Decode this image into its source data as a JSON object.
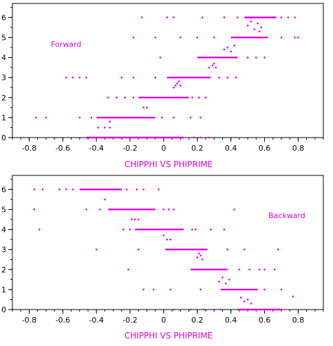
{
  "chart_data": [
    {
      "type": "scatter",
      "title": "CHIPPHI VS PHIPRIME",
      "annotation": "Forward",
      "xlim": [
        -0.9,
        0.95
      ],
      "ylim": [
        0,
        6.7
      ],
      "xticks": [
        -0.8,
        -0.6,
        -0.4,
        -0.2,
        0,
        0.2,
        0.4,
        0.6,
        0.8
      ],
      "xtick_labels": [
        "-0.8",
        "-0.6",
        "-0.4",
        "-0.2",
        "0",
        "0.2",
        "0.4",
        "0.6",
        "0.8"
      ],
      "yticks": [
        0,
        1,
        2,
        3,
        4,
        5,
        6
      ],
      "ytick_labels": [
        "0",
        "1",
        "2",
        "3",
        "4",
        "5",
        "6"
      ],
      "color": "#e000e0",
      "segments": [
        {
          "y": 0,
          "x0": -0.46,
          "x1": 0.12
        },
        {
          "y": 1,
          "x0": -0.4,
          "x1": -0.05
        },
        {
          "y": 2,
          "x0": -0.15,
          "x1": 0.15
        },
        {
          "y": 3,
          "x0": 0.02,
          "x1": 0.28
        },
        {
          "y": 4,
          "x0": 0.2,
          "x1": 0.44
        },
        {
          "y": 5,
          "x0": 0.4,
          "x1": 0.62
        },
        {
          "y": 6,
          "x0": 0.48,
          "x1": 0.67
        }
      ],
      "points": [
        [
          -0.76,
          1
        ],
        [
          -0.7,
          1
        ],
        [
          -0.5,
          1
        ],
        [
          -0.43,
          1
        ],
        [
          -0.01,
          1
        ],
        [
          0.06,
          1
        ],
        [
          0.16,
          1
        ],
        [
          0.22,
          1
        ],
        [
          -0.39,
          0.5
        ],
        [
          -0.35,
          0.5
        ],
        [
          -0.32,
          0.5
        ],
        [
          -0.32,
          0.8
        ],
        [
          -0.12,
          1.5
        ],
        [
          -0.1,
          1.5
        ],
        [
          -0.45,
          0
        ],
        [
          0.18,
          0
        ],
        [
          0.22,
          0
        ],
        [
          0.27,
          0
        ],
        [
          -0.33,
          2
        ],
        [
          -0.28,
          2
        ],
        [
          -0.23,
          2
        ],
        [
          -0.18,
          2
        ],
        [
          0.17,
          2
        ],
        [
          0.21,
          2
        ],
        [
          0.25,
          2
        ],
        [
          0.06,
          2.5
        ],
        [
          0.07,
          2.6
        ],
        [
          0.08,
          2.7
        ],
        [
          0.09,
          2.8
        ],
        [
          0.1,
          2.6
        ],
        [
          -0.58,
          3
        ],
        [
          -0.54,
          3
        ],
        [
          -0.5,
          3
        ],
        [
          -0.46,
          3
        ],
        [
          -0.25,
          3
        ],
        [
          -0.18,
          3
        ],
        [
          -0.05,
          3
        ],
        [
          0.33,
          3
        ],
        [
          0.38,
          3
        ],
        [
          0.43,
          3
        ],
        [
          0.27,
          3.5
        ],
        [
          0.29,
          3.6
        ],
        [
          0.3,
          3.7
        ],
        [
          0.31,
          3.5
        ],
        [
          -0.02,
          4
        ],
        [
          0.5,
          4
        ],
        [
          0.55,
          4
        ],
        [
          0.6,
          4
        ],
        [
          0.36,
          4.4
        ],
        [
          0.38,
          4.5
        ],
        [
          0.4,
          4.3
        ],
        [
          0.42,
          4.6
        ],
        [
          -0.18,
          5
        ],
        [
          -0.05,
          5
        ],
        [
          0.1,
          5
        ],
        [
          0.2,
          5
        ],
        [
          0.3,
          5
        ],
        [
          0.7,
          5
        ],
        [
          0.78,
          5
        ],
        [
          0.8,
          5
        ],
        [
          -0.13,
          6
        ],
        [
          0.02,
          6
        ],
        [
          0.06,
          6
        ],
        [
          0.23,
          6
        ],
        [
          0.36,
          6
        ],
        [
          0.44,
          6
        ],
        [
          0.7,
          6
        ],
        [
          0.74,
          6
        ],
        [
          0.78,
          6
        ],
        [
          0.5,
          5.6
        ],
        [
          0.52,
          5.8
        ],
        [
          0.54,
          5.4
        ],
        [
          0.56,
          5.7
        ],
        [
          0.57,
          5.3
        ],
        [
          0.58,
          5.5
        ]
      ]
    },
    {
      "type": "scatter",
      "title": "CHIPPHI VS PHIPRIME",
      "annotation": "Backward",
      "xlim": [
        -0.9,
        0.95
      ],
      "ylim": [
        0,
        6.7
      ],
      "xticks": [
        -0.8,
        -0.6,
        -0.4,
        -0.2,
        0,
        0.2,
        0.4,
        0.6,
        0.8
      ],
      "xtick_labels": [
        "-0.8",
        "-0.6",
        "-0.4",
        "-0.2",
        "0",
        "0.2",
        "0.4",
        "0.6",
        "0.8"
      ],
      "yticks": [
        0,
        1,
        2,
        3,
        4,
        5,
        6
      ],
      "ytick_labels": [
        "0",
        "1",
        "2",
        "3",
        "4",
        "5",
        "6"
      ],
      "color": "#e000e0",
      "segments": [
        {
          "y": 6,
          "x0": -0.5,
          "x1": -0.25
        },
        {
          "y": 5,
          "x0": -0.33,
          "x1": -0.05
        },
        {
          "y": 4,
          "x0": -0.17,
          "x1": 0.12
        },
        {
          "y": 3,
          "x0": 0.01,
          "x1": 0.26
        },
        {
          "y": 2,
          "x0": 0.16,
          "x1": 0.38
        },
        {
          "y": 1,
          "x0": 0.34,
          "x1": 0.56
        },
        {
          "y": 0,
          "x0": 0.44,
          "x1": 0.7
        }
      ],
      "points": [
        [
          -0.77,
          6
        ],
        [
          -0.72,
          6
        ],
        [
          -0.62,
          6
        ],
        [
          -0.58,
          6
        ],
        [
          -0.54,
          6
        ],
        [
          -0.22,
          6
        ],
        [
          -0.16,
          6
        ],
        [
          -0.12,
          6
        ],
        [
          -0.03,
          6
        ],
        [
          -0.35,
          5.5
        ],
        [
          -0.77,
          5
        ],
        [
          -0.46,
          5
        ],
        [
          -0.38,
          5
        ],
        [
          0.0,
          5
        ],
        [
          0.03,
          5
        ],
        [
          0.06,
          5
        ],
        [
          0.42,
          5
        ],
        [
          -0.19,
          4.5
        ],
        [
          -0.17,
          4.5
        ],
        [
          -0.15,
          4.5
        ],
        [
          -0.74,
          4
        ],
        [
          -0.24,
          4
        ],
        [
          -0.2,
          4
        ],
        [
          0.17,
          4
        ],
        [
          0.19,
          4
        ],
        [
          0.28,
          4
        ],
        [
          0.36,
          4
        ],
        [
          0.0,
          3.7
        ],
        [
          0.02,
          3.5
        ],
        [
          0.04,
          3.5
        ],
        [
          -0.4,
          3
        ],
        [
          -0.15,
          3
        ],
        [
          0.38,
          3
        ],
        [
          0.48,
          3
        ],
        [
          0.68,
          3
        ],
        [
          0.2,
          2.6
        ],
        [
          0.21,
          2.8
        ],
        [
          0.22,
          2.7
        ],
        [
          0.23,
          2.5
        ],
        [
          -0.21,
          2
        ],
        [
          0.45,
          2
        ],
        [
          0.51,
          2
        ],
        [
          0.57,
          2
        ],
        [
          0.6,
          2
        ],
        [
          0.66,
          2
        ],
        [
          -0.12,
          1
        ],
        [
          -0.06,
          1
        ],
        [
          0.04,
          1
        ],
        [
          0.22,
          1
        ],
        [
          0.6,
          1
        ],
        [
          0.7,
          1
        ],
        [
          0.33,
          1.4
        ],
        [
          0.35,
          1.6
        ],
        [
          0.37,
          1.3
        ],
        [
          0.39,
          1.5
        ],
        [
          0.46,
          0.6
        ],
        [
          0.48,
          0.4
        ],
        [
          0.5,
          0.5
        ],
        [
          0.52,
          0.3
        ],
        [
          0.06,
          0
        ],
        [
          0.16,
          0
        ],
        [
          0.24,
          0
        ],
        [
          0.3,
          0
        ],
        [
          0.34,
          0
        ],
        [
          0.77,
          0.65
        ]
      ]
    }
  ]
}
